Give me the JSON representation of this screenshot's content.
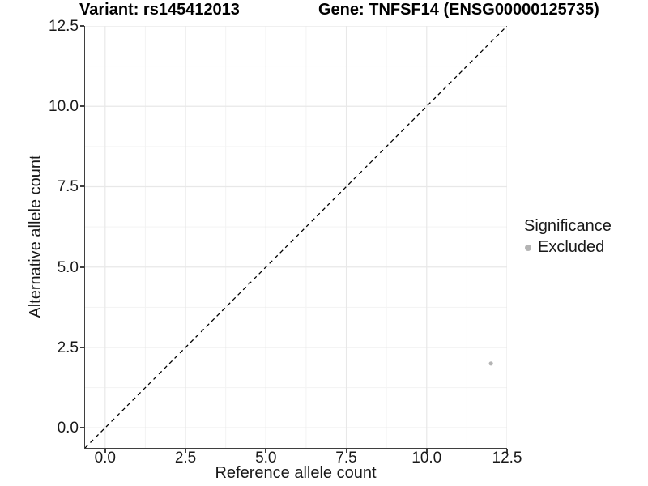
{
  "colors": {
    "background": "#ffffff",
    "axis_line": "#3f3f3f",
    "tick_mark": "#3f3f3f",
    "grid_major": "#e8e8e8",
    "grid_minor": "#f3f3f3",
    "text": "#191919",
    "title_text": "#000000",
    "point_gray": "#b4b4b4"
  },
  "chart_data": {
    "type": "scatter",
    "title_left": "Variant: rs145412013",
    "title_right": "Gene: TNFSF14 (ENSG00000125735)",
    "xlabel": "Reference allele count",
    "ylabel": "Alternative allele count",
    "xlim": [
      -0.625,
      12.5
    ],
    "ylim": [
      -0.625,
      12.5
    ],
    "x_major_ticks": [
      0,
      2.5,
      5,
      7.5,
      10,
      12.5
    ],
    "x_tick_labels": [
      "0.0",
      "2.5",
      "5.0",
      "7.5",
      "10.0",
      "12.5"
    ],
    "x_minor_ticks": [
      1.25,
      3.75,
      6.25,
      8.75,
      11.25
    ],
    "y_major_ticks": [
      0,
      2.5,
      5,
      7.5,
      10,
      12.5
    ],
    "y_tick_labels": [
      "0.0",
      "2.5",
      "5.0",
      "7.5",
      "10.0",
      "12.5"
    ],
    "y_minor_ticks": [
      1.25,
      3.75,
      6.25,
      8.75,
      11.25
    ],
    "grid": {
      "major": true,
      "minor": true
    },
    "identity_line": {
      "slope": 1,
      "intercept": 0,
      "style": "dashed",
      "color": "#000000"
    },
    "series": [
      {
        "name": "Excluded",
        "color": "#b4b4b4",
        "points": [
          {
            "x": 12,
            "y": 2
          }
        ]
      }
    ],
    "legend": {
      "title": "Significance",
      "position": "right",
      "entries": [
        {
          "label": "Excluded",
          "color": "#b4b4b4"
        }
      ]
    }
  }
}
